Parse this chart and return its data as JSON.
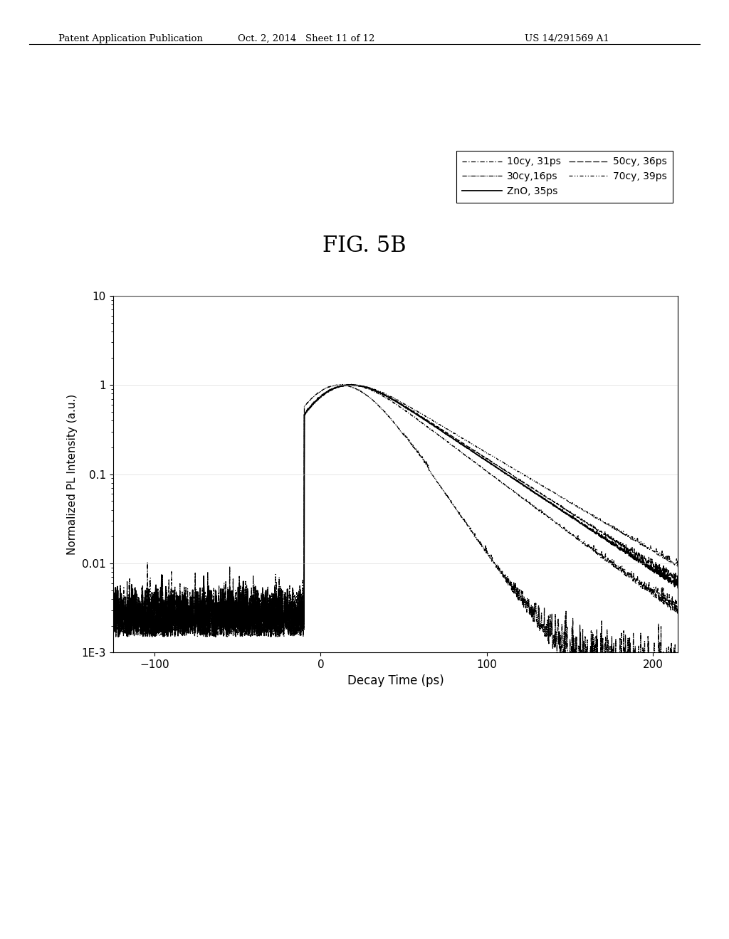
{
  "fig_title": "FIG. 5B",
  "header_left": "Patent Application Publication",
  "header_mid": "Oct. 2, 2014   Sheet 11 of 12",
  "header_right": "US 14/291569 A1",
  "xlabel": "Decay Time (ps)",
  "ylabel": "Normalized PL Intensity (a.u.)",
  "xlim": [
    -125,
    215
  ],
  "xticks": [
    -100,
    0,
    100,
    200
  ],
  "ylim_log": [
    0.001,
    10
  ],
  "ytick_labels": [
    "1E-3",
    "0.01",
    "0.1",
    "1",
    "10"
  ],
  "bg_color": "#ffffff",
  "line_color": "#000000",
  "rise_sigma": 18,
  "tau_zno": 35,
  "tau_10cy": 31,
  "tau_30cy": 16,
  "tau_50cy": 36,
  "tau_70cy": 39,
  "baseline_level": 0.0015,
  "noise_scale_pre": 0.0008,
  "noise_scale_post": 0.003
}
